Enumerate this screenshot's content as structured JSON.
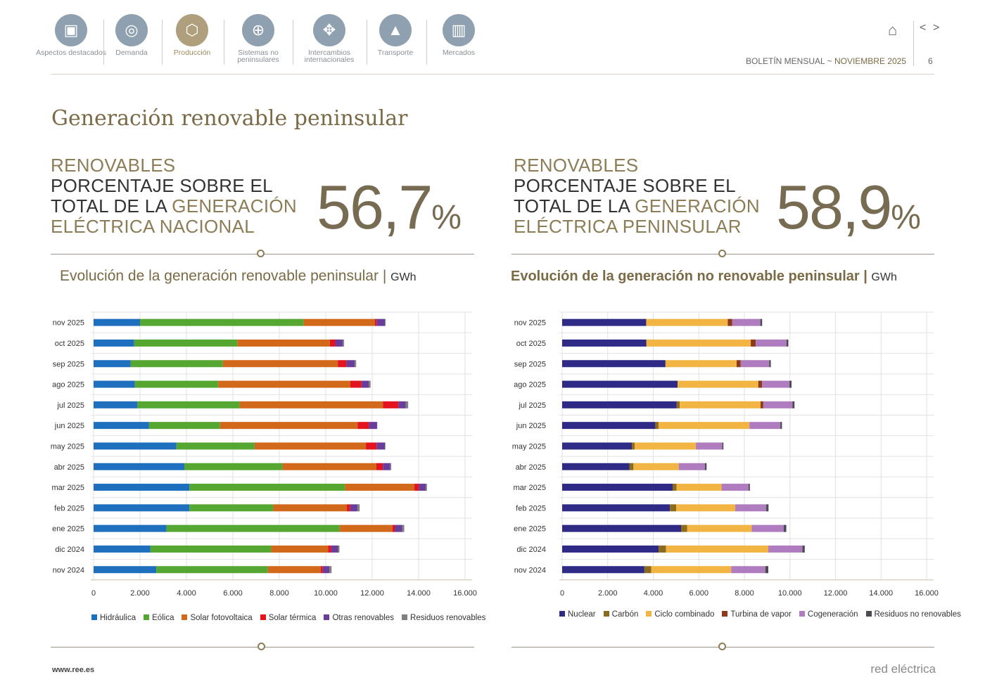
{
  "nav": [
    {
      "label": "Aspectos destacados",
      "icon": "document-icon"
    },
    {
      "label": "Demanda",
      "icon": "lightbulb-icon"
    },
    {
      "label": "Producción",
      "icon": "cube-icon",
      "active": true
    },
    {
      "label": "Sistemas no peninsulares",
      "icon": "target-icon"
    },
    {
      "label": "Intercambios internacionales",
      "icon": "arrows-icon"
    },
    {
      "label": "Transporte",
      "icon": "tower-icon"
    },
    {
      "label": "Mercados",
      "icon": "bar-chart-icon"
    }
  ],
  "header": {
    "bulletin": "BOLETÍN MENSUAL",
    "sep": "~",
    "month": "NOVIEMBRE 2025",
    "page": "6",
    "prev": "<",
    "next": ">"
  },
  "title": "Generación renovable peninsular",
  "kpi_left": {
    "l1": "RENOVABLES",
    "l2": "PORCENTAJE SOBRE EL",
    "l3a": "TOTAL DE LA ",
    "l3b": "GENERACIÓN",
    "l4": "ELÉCTRICA NACIONAL",
    "value": "56,7",
    "unit": "%"
  },
  "kpi_right": {
    "l1": "RENOVABLES",
    "l2": "PORCENTAJE SOBRE EL",
    "l3a": "TOTAL DE LA ",
    "l3b": "GENERACIÓN",
    "l4": "ELÉCTRICA PENINSULAR",
    "value": "58,9",
    "unit": "%"
  },
  "footer": {
    "url": "www.ree.es",
    "brand": "red eléctrica"
  },
  "chart_data": [
    {
      "type": "bar",
      "orientation": "horizontal",
      "stacked": true,
      "title": "Evolución de la generación renovable peninsular",
      "unit": "GWh",
      "categories": [
        "nov 2025",
        "oct 2025",
        "sep 2025",
        "ago 2025",
        "jul 2025",
        "jun 2025",
        "may 2025",
        "abr 2025",
        "mar 2025",
        "feb 2025",
        "ene 2025",
        "dic 2024",
        "nov 2024"
      ],
      "xlim": [
        0,
        16000
      ],
      "xticks": [
        "0",
        "2.000",
        "4.000",
        "6.000",
        "8.000",
        "10.000",
        "12.000",
        "14.000",
        "16.000"
      ],
      "grid": true,
      "legend": "bottom",
      "series": [
        {
          "name": "Hidráulica",
          "color": "#1f6fbf",
          "values": [
            2000,
            1750,
            1600,
            1780,
            1890,
            2390,
            3570,
            3910,
            4130,
            4130,
            3140,
            2450,
            2700
          ]
        },
        {
          "name": "Eólica",
          "color": "#56a632",
          "values": [
            7050,
            4440,
            3970,
            3590,
            4400,
            3060,
            3360,
            4230,
            6700,
            3610,
            7460,
            5200,
            4810
          ]
        },
        {
          "name": "Solar fotovoltaica",
          "color": "#d2691a",
          "values": [
            3060,
            3990,
            4950,
            5690,
            6170,
            5920,
            4800,
            4040,
            2990,
            3170,
            2270,
            2450,
            2270
          ]
        },
        {
          "name": "Solar térmica",
          "color": "#e3141e",
          "values": [
            80,
            230,
            370,
            480,
            670,
            490,
            460,
            280,
            190,
            140,
            100,
            130,
            90
          ]
        },
        {
          "name": "Otras renovables",
          "color": "#6a3d9a",
          "values": [
            360,
            320,
            360,
            320,
            320,
            350,
            360,
            320,
            300,
            320,
            320,
            300,
            290
          ]
        },
        {
          "name": "Residuos renovables",
          "color": "#808080",
          "values": [
            30,
            60,
            60,
            70,
            100,
            10,
            20,
            40,
            50,
            90,
            90,
            60,
            90
          ]
        }
      ]
    },
    {
      "type": "bar",
      "orientation": "horizontal",
      "stacked": true,
      "title": "Evolución de la generación no renovable peninsular",
      "unit": "GWh",
      "categories": [
        "nov 2025",
        "oct 2025",
        "sep 2025",
        "ago 2025",
        "jul 2025",
        "jun 2025",
        "may 2025",
        "abr 2025",
        "mar 2025",
        "feb 2025",
        "ene 2025",
        "dic 2024",
        "nov 2024"
      ],
      "xlim": [
        0,
        16000
      ],
      "xticks": [
        "0",
        "2.000",
        "4.000",
        "6.000",
        "8.000",
        "10.000",
        "12.000",
        "14.000",
        "16.000"
      ],
      "grid": true,
      "legend": "bottom",
      "series": [
        {
          "name": "Nuclear",
          "color": "#2e2a86",
          "values": [
            3690,
            3700,
            4530,
            5070,
            5030,
            4090,
            3060,
            2950,
            4850,
            4730,
            5220,
            4240,
            3610
          ]
        },
        {
          "name": "Carbón",
          "color": "#8b6b1e",
          "values": [
            0,
            0,
            20,
            0,
            130,
            140,
            120,
            180,
            170,
            280,
            270,
            320,
            300
          ]
        },
        {
          "name": "Ciclo combinado",
          "color": "#f2b544",
          "values": [
            3580,
            4580,
            3110,
            3540,
            3550,
            3990,
            2690,
            1990,
            1980,
            2590,
            2830,
            4490,
            3510
          ]
        },
        {
          "name": "Turbina de vapor",
          "color": "#8c3b1a",
          "values": [
            200,
            220,
            180,
            170,
            120,
            0,
            0,
            0,
            0,
            0,
            0,
            0,
            0
          ]
        },
        {
          "name": "Cogeneración",
          "color": "#b07cc0",
          "values": [
            1230,
            1350,
            1250,
            1200,
            1280,
            1360,
            1160,
            1150,
            1180,
            1360,
            1410,
            1500,
            1500
          ]
        },
        {
          "name": "Residuos no renovables",
          "color": "#4a4a50",
          "values": [
            80,
            80,
            70,
            90,
            90,
            70,
            50,
            70,
            60,
            100,
            110,
            100,
            130
          ]
        }
      ]
    }
  ]
}
